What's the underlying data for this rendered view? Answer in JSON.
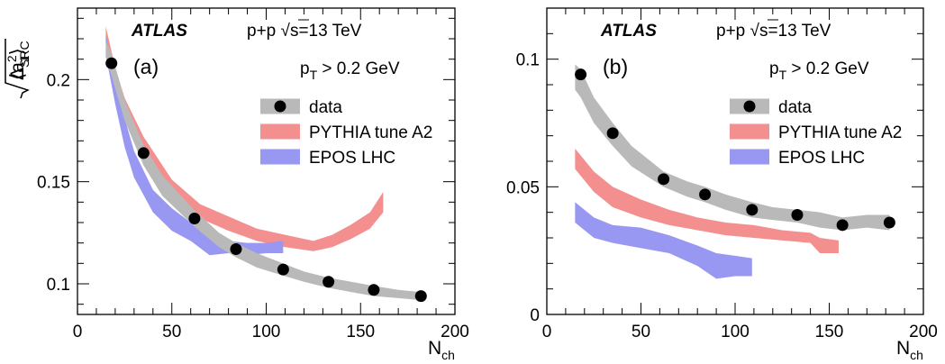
{
  "colors": {
    "data_band": "#b9b9b9",
    "pythia": "#f48f90",
    "epos": "#9898f2",
    "marker": "#000000"
  },
  "chart_data": [
    {
      "type": "line",
      "panel_label": "(a)",
      "experiment": "ATLAS",
      "system": "p+p",
      "energy_label": "s=13 TeV",
      "sqrt_symbol": "√",
      "cut_label": "p",
      "cut_subscript": "T",
      "cut_value": " > 0.2 GeV",
      "xlabel": "N",
      "xlabel_sub": "ch",
      "ylabel": "Δ",
      "ylabel_sub": "SRC",
      "xlim": [
        0,
        200
      ],
      "ylim": [
        0.085,
        0.235
      ],
      "xticks": [
        0,
        50,
        100,
        150,
        200
      ],
      "xtick_labels": [
        "0",
        "50",
        "100",
        "150",
        "200"
      ],
      "yticks": [
        0.1,
        0.15,
        0.2
      ],
      "ytick_labels": [
        "0.1",
        "0.15",
        "0.2"
      ],
      "legend": [
        "data",
        "PYTHIA tune A2",
        "EPOS LHC"
      ],
      "series": [
        {
          "name": "data",
          "kind": "points",
          "x": [
            18,
            35,
            62,
            84,
            109,
            133,
            157,
            182
          ],
          "y": [
            0.208,
            0.164,
            0.132,
            0.117,
            0.107,
            0.101,
            0.097,
            0.094
          ]
        },
        {
          "name": "data",
          "kind": "band",
          "x": [
            15,
            18,
            25,
            35,
            45,
            62,
            75,
            84,
            95,
            109,
            120,
            133,
            145,
            157,
            170,
            182
          ],
          "y_low": [
            0.211,
            0.202,
            0.18,
            0.158,
            0.143,
            0.128,
            0.118,
            0.113,
            0.108,
            0.104,
            0.101,
            0.098,
            0.096,
            0.094,
            0.093,
            0.092
          ],
          "y_high": [
            0.219,
            0.213,
            0.19,
            0.168,
            0.153,
            0.136,
            0.125,
            0.12,
            0.115,
            0.11,
            0.106,
            0.103,
            0.101,
            0.099,
            0.097,
            0.096
          ]
        },
        {
          "name": "PYTHIA tune A2",
          "kind": "band",
          "x": [
            15,
            20,
            25,
            35,
            50,
            65,
            80,
            95,
            110,
            125,
            135,
            145,
            155,
            162
          ],
          "y_low": [
            0.218,
            0.198,
            0.183,
            0.164,
            0.143,
            0.132,
            0.126,
            0.121,
            0.118,
            0.116,
            0.118,
            0.122,
            0.127,
            0.135
          ],
          "y_high": [
            0.226,
            0.206,
            0.191,
            0.172,
            0.151,
            0.139,
            0.133,
            0.127,
            0.124,
            0.121,
            0.124,
            0.129,
            0.135,
            0.145
          ]
        },
        {
          "name": "EPOS LHC",
          "kind": "band",
          "x": [
            15,
            20,
            25,
            30,
            40,
            50,
            60,
            70,
            80,
            90,
            100,
            109
          ],
          "y_low": [
            0.212,
            0.188,
            0.167,
            0.152,
            0.135,
            0.126,
            0.121,
            0.114,
            0.115,
            0.114,
            0.115,
            0.115
          ],
          "y_high": [
            0.222,
            0.2,
            0.181,
            0.165,
            0.146,
            0.137,
            0.13,
            0.124,
            0.121,
            0.12,
            0.12,
            0.121
          ]
        }
      ]
    },
    {
      "type": "line",
      "panel_label": "(b)",
      "experiment": "ATLAS",
      "system": "p+p",
      "energy_label": "s=13 TeV",
      "sqrt_symbol": "√",
      "cut_label": "p",
      "cut_subscript": "T",
      "cut_value": " > 0.2 GeV",
      "xlabel": "N",
      "xlabel_sub": "ch",
      "ylabel": "⟨a",
      "ylabel_sub": "1",
      "ylabel_sup": "2",
      "ylabel_close": "⟩",
      "xlim": [
        0,
        200
      ],
      "ylim": [
        0,
        0.12
      ],
      "xticks": [
        0,
        50,
        100,
        150,
        200
      ],
      "xtick_labels": [
        "0",
        "50",
        "100",
        "150",
        "200"
      ],
      "yticks": [
        0,
        0.05,
        0.1
      ],
      "ytick_labels": [
        "0",
        "0.05",
        "0.1"
      ],
      "legend": [
        "data",
        "PYTHIA tune A2",
        "EPOS LHC"
      ],
      "series": [
        {
          "name": "data",
          "kind": "points",
          "x": [
            18,
            35,
            62,
            84,
            109,
            133,
            157,
            182
          ],
          "y": [
            0.094,
            0.071,
            0.053,
            0.047,
            0.041,
            0.039,
            0.035,
            0.036
          ]
        },
        {
          "name": "data",
          "kind": "band",
          "x": [
            15,
            18,
            25,
            35,
            45,
            62,
            75,
            84,
            95,
            109,
            120,
            133,
            145,
            157,
            170,
            182
          ],
          "y_low": [
            0.088,
            0.085,
            0.075,
            0.066,
            0.058,
            0.05,
            0.046,
            0.044,
            0.041,
            0.038,
            0.037,
            0.036,
            0.034,
            0.033,
            0.034,
            0.033
          ],
          "y_high": [
            0.098,
            0.096,
            0.085,
            0.075,
            0.066,
            0.056,
            0.052,
            0.05,
            0.047,
            0.044,
            0.042,
            0.041,
            0.04,
            0.038,
            0.039,
            0.039
          ]
        },
        {
          "name": "PYTHIA tune A2",
          "kind": "band",
          "x": [
            15,
            25,
            35,
            50,
            65,
            80,
            95,
            110,
            125,
            140,
            145,
            155
          ],
          "y_low": [
            0.057,
            0.048,
            0.042,
            0.038,
            0.035,
            0.033,
            0.031,
            0.03,
            0.029,
            0.028,
            0.024,
            0.024
          ],
          "y_high": [
            0.065,
            0.056,
            0.05,
            0.045,
            0.041,
            0.038,
            0.036,
            0.035,
            0.033,
            0.032,
            0.03,
            0.029
          ]
        },
        {
          "name": "EPOS LHC",
          "kind": "band",
          "x": [
            15,
            25,
            35,
            50,
            65,
            80,
            90,
            100,
            109
          ],
          "y_low": [
            0.036,
            0.03,
            0.028,
            0.026,
            0.024,
            0.019,
            0.014,
            0.015,
            0.015
          ],
          "y_high": [
            0.044,
            0.038,
            0.035,
            0.034,
            0.031,
            0.027,
            0.024,
            0.023,
            0.022
          ]
        }
      ]
    }
  ]
}
